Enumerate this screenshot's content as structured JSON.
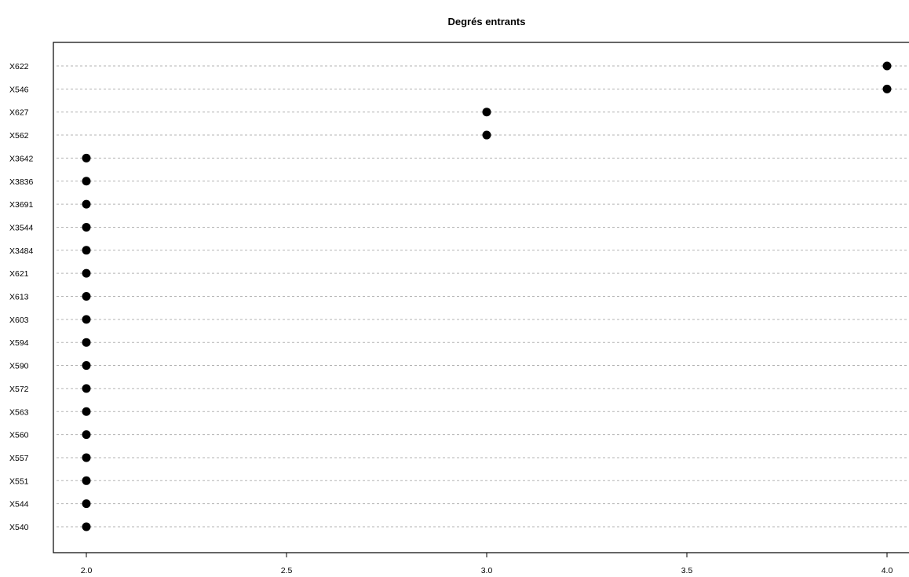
{
  "chart_data": {
    "type": "scatter",
    "subtype": "dotchart",
    "title": "Degrés entrants",
    "xlabel": "",
    "ylabel": "",
    "xlim": [
      2.0,
      4.0
    ],
    "x_ticks": [
      "2.0",
      "2.5",
      "3.0",
      "3.5",
      "4.0"
    ],
    "x_tick_values": [
      2.0,
      2.5,
      3.0,
      3.5,
      4.0
    ],
    "grid": "horizontal dotted lines per category",
    "point_color": "#000000",
    "grid_color": "#b3b3b3",
    "categories": [
      "X622",
      "X546",
      "X627",
      "X562",
      "X3642",
      "X3836",
      "X3691",
      "X3544",
      "X3484",
      "X621",
      "X613",
      "X603",
      "X594",
      "X590",
      "X572",
      "X563",
      "X560",
      "X557",
      "X551",
      "X544",
      "X540"
    ],
    "values": [
      4,
      4,
      3,
      3,
      2,
      2,
      2,
      2,
      2,
      2,
      2,
      2,
      2,
      2,
      2,
      2,
      2,
      2,
      2,
      2,
      2
    ]
  }
}
